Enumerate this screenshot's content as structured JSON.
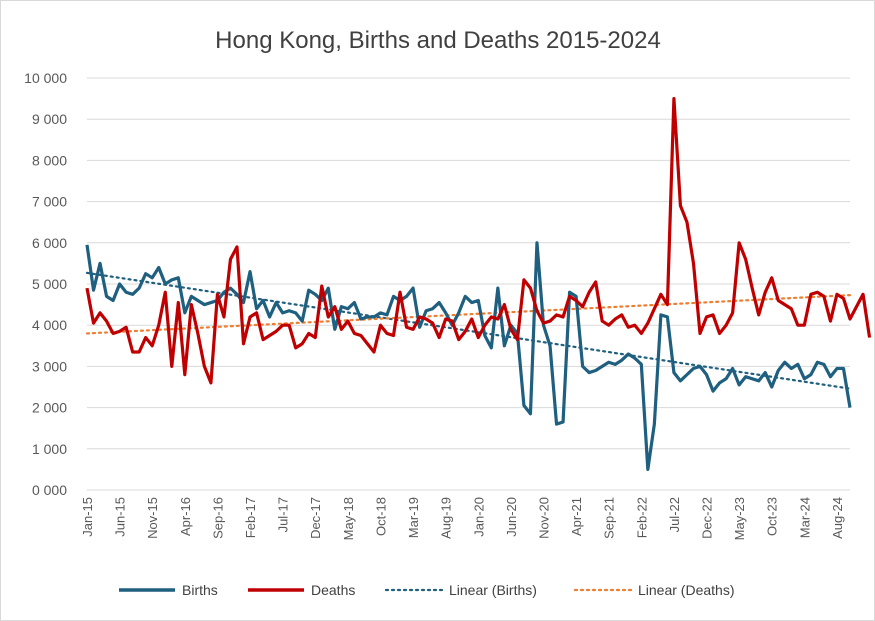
{
  "chart_data": {
    "type": "line",
    "title": "Hong Kong, Births and Deaths 2015-2024",
    "xlabel": "",
    "ylabel": "",
    "ylim": [
      0,
      10000
    ],
    "y_ticks": [
      "0 000",
      "1 000",
      "2 000",
      "3 000",
      "4 000",
      "5 000",
      "6 000",
      "7 000",
      "8 000",
      "9 000",
      "10 000"
    ],
    "x_tick_labels": [
      "Jan-15",
      "Jun-15",
      "Nov-15",
      "Apr-16",
      "Sep-16",
      "Feb-17",
      "Jul-17",
      "Dec-17",
      "May-18",
      "Oct-18",
      "Mar-19",
      "Aug-19",
      "Jan-20",
      "Jun-20",
      "Nov-20",
      "Apr-21",
      "Sep-21",
      "Feb-22",
      "Jul-22",
      "Dec-22",
      "May-23",
      "Oct-23",
      "Mar-24",
      "Aug-24"
    ],
    "grid": "horizontal",
    "legend_position": "bottom",
    "colors": {
      "births": "#1f5f7f",
      "deaths": "#c00000",
      "trend_births": "#1f5f7f",
      "trend_deaths": "#ed7d31"
    },
    "series": [
      {
        "name": "Births",
        "values": [
          5950,
          4850,
          5500,
          4700,
          4600,
          5000,
          4800,
          4750,
          4900,
          5250,
          5150,
          5400,
          5000,
          5100,
          5150,
          4300,
          4700,
          4600,
          4500,
          4550,
          4600,
          4800,
          4900,
          4750,
          4550,
          5300,
          4400,
          4600,
          4200,
          4550,
          4300,
          4350,
          4300,
          4100,
          4850,
          4750,
          4600,
          4900,
          3900,
          4450,
          4400,
          4550,
          4150,
          4200,
          4200,
          4300,
          4250,
          4700,
          4600,
          4700,
          4900,
          3950,
          4350,
          4400,
          4550,
          4300,
          4000,
          4300,
          4700,
          4550,
          4600,
          3750,
          3450,
          4900,
          3500,
          4000,
          3800,
          2050,
          1850,
          6000,
          4000,
          3500,
          1600,
          1650,
          4800,
          4700,
          3000,
          2850,
          2900,
          3000,
          3100,
          3050,
          3150,
          3300,
          3200,
          3050,
          500,
          1600,
          4250,
          4200,
          2850,
          2650,
          2800,
          2950,
          3000,
          2800,
          2400,
          2600,
          2700,
          2950,
          2550,
          2750,
          2700,
          2650,
          2850,
          2500,
          2900,
          3100,
          2950,
          3050,
          2700,
          2800,
          3100,
          3050,
          2750,
          2950,
          2950,
          2000
        ]
      },
      {
        "name": "Deaths",
        "values": [
          4900,
          4050,
          4300,
          4100,
          3800,
          3850,
          3950,
          3350,
          3350,
          3700,
          3500,
          4000,
          4800,
          3000,
          4550,
          2800,
          4500,
          3800,
          3000,
          2600,
          4750,
          4200,
          5600,
          5900,
          3550,
          4200,
          4300,
          3650,
          3750,
          3850,
          4000,
          4000,
          3450,
          3550,
          3800,
          3700,
          4950,
          4200,
          4450,
          3900,
          4100,
          3800,
          3750,
          3550,
          3350,
          4000,
          3800,
          3750,
          4800,
          3950,
          3900,
          4200,
          4150,
          4050,
          3700,
          4150,
          4100,
          3650,
          3850,
          4150,
          3700,
          4000,
          4200,
          4150,
          4500,
          3900,
          3650,
          5100,
          4900,
          4350,
          4050,
          4100,
          4250,
          4200,
          4700,
          4600,
          4450,
          4800,
          5050,
          4100,
          4000,
          4150,
          4250,
          3950,
          4000,
          3800,
          4050,
          4400,
          4750,
          4500,
          9500,
          6900,
          6500,
          5500,
          3800,
          4200,
          4250,
          3800,
          4000,
          4300,
          6000,
          5600,
          4900,
          4250,
          4800,
          5150,
          4600,
          4500,
          4400,
          4000,
          4000,
          4750,
          4800,
          4700,
          4100,
          4750,
          4650,
          4150,
          4450,
          4750,
          3700
        ]
      },
      {
        "name": "Linear (Births)",
        "style": "dotted",
        "values_start_end": [
          5270,
          2460
        ]
      },
      {
        "name": "Linear (Deaths)",
        "style": "dotted",
        "values_start_end": [
          3800,
          4730
        ]
      }
    ]
  }
}
